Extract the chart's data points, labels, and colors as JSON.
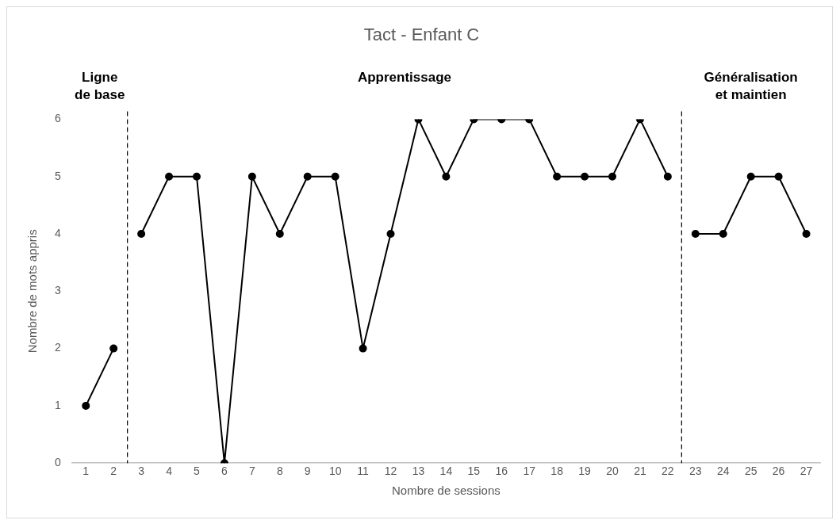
{
  "chart_data": {
    "type": "line",
    "title": "Tact - Enfant C",
    "xlabel": "Nombre de sessions",
    "ylabel": "Nombre de mots appris",
    "x": [
      1,
      2,
      3,
      4,
      5,
      6,
      7,
      8,
      9,
      10,
      11,
      12,
      13,
      14,
      15,
      16,
      17,
      18,
      19,
      20,
      21,
      22,
      23,
      24,
      25,
      26,
      27
    ],
    "xlim": [
      0.5,
      27.5
    ],
    "xticks": [
      1,
      2,
      3,
      4,
      5,
      6,
      7,
      8,
      9,
      10,
      11,
      12,
      13,
      14,
      15,
      16,
      17,
      18,
      19,
      20,
      21,
      22,
      23,
      24,
      25,
      26,
      27
    ],
    "ylim": [
      0,
      6
    ],
    "yticks": [
      0,
      1,
      2,
      3,
      4,
      5,
      6
    ],
    "series": [
      {
        "color": "#000000",
        "values": [
          1,
          2,
          null,
          null,
          null,
          null,
          null,
          null,
          null,
          null,
          null,
          null,
          null,
          null,
          null,
          null,
          null,
          null,
          null,
          null,
          null,
          null,
          null,
          null,
          null,
          null,
          null
        ]
      },
      {
        "color": "#000000",
        "values": [
          null,
          null,
          4,
          5,
          5,
          0,
          5,
          4,
          5,
          5,
          2,
          4,
          6,
          5,
          6,
          6,
          6,
          5,
          5,
          5,
          6,
          5,
          null,
          null,
          null,
          null,
          null
        ]
      },
      {
        "color": "#000000",
        "values": [
          null,
          null,
          null,
          null,
          null,
          null,
          null,
          null,
          null,
          null,
          null,
          null,
          null,
          null,
          null,
          null,
          null,
          null,
          null,
          null,
          null,
          null,
          4,
          4,
          5,
          5,
          4
        ]
      }
    ],
    "ref_lines": [
      {
        "axis": "x",
        "value": 2.5,
        "line_style": "dashed",
        "color": "#000000"
      },
      {
        "axis": "x",
        "value": 22.5,
        "line_style": "dashed",
        "color": "#000000"
      }
    ],
    "annotations": [
      "Ligne\nde base",
      "Apprentissage",
      "Généralisation\net maintien"
    ],
    "marker": "circle",
    "line_style": "solid",
    "grid": false,
    "legend": false
  }
}
